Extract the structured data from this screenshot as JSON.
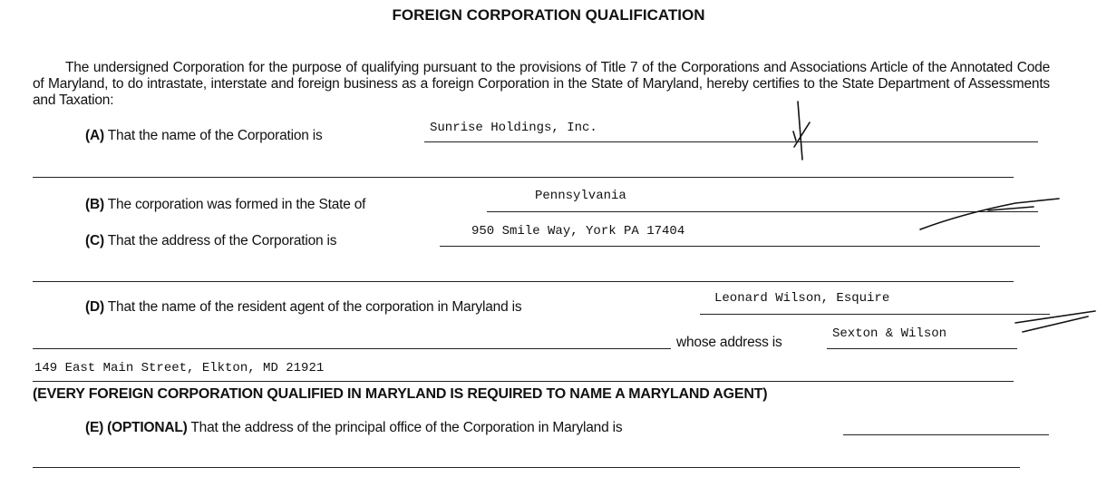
{
  "title": "FOREIGN CORPORATION QUALIFICATION",
  "intro": "The undersigned Corporation for the purpose of qualifying pursuant to the provisions of Title 7 of the Corporations and Associations Article of the Annotated Code of Maryland, to do intrastate, interstate and foreign business as a foreign Corporation in the State of Maryland, hereby certifies to the State Department of Assessments and Taxation:",
  "items": {
    "a": {
      "tag": "(A)",
      "text": "That the name of the Corporation is",
      "value": "Sunrise Holdings, Inc."
    },
    "b": {
      "tag": "(B)",
      "text": "The corporation was formed in the State of",
      "value": "Pennsylvania"
    },
    "c": {
      "tag": "(C)",
      "text": "That the address of the Corporation is",
      "value": "950 Smile Way, York PA 17404"
    },
    "d": {
      "tag": "(D)",
      "text": "That the name of the resident agent of the corporation in Maryland is",
      "value": "Leonard Wilson, Esquire",
      "address_label": "whose address is",
      "address_value": "Sexton & Wilson",
      "address_line2": "149 East Main Street, Elkton, MD 21921"
    },
    "notice": "(EVERY FOREIGN CORPORATION QUALIFIED IN MARYLAND IS REQUIRED TO NAME A MARYLAND AGENT)",
    "e": {
      "tag": "(E) (OPTIONAL)",
      "text": "That the address of the principal office of the Corporation in Maryland is",
      "value": ""
    }
  }
}
